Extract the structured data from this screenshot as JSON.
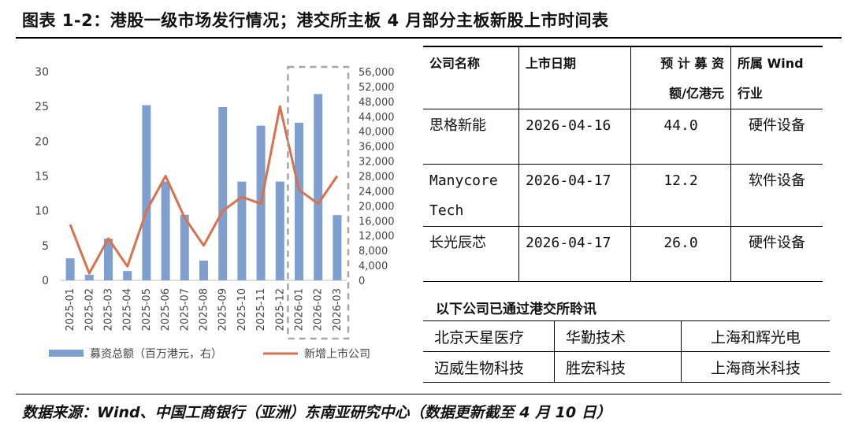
{
  "figure": {
    "title": "图表 1-2：港股一级市场发行情况；港交所主板 4 月部分主板新股上市时间表",
    "source": "数据来源：Wind、中国工商银行（亚洲）东南亚研究中心（数据更新截至 4 月 10 日）"
  },
  "chart_data": {
    "type": "bar",
    "categories": [
      "2025-01",
      "2025-02",
      "2025-03",
      "2025-04",
      "2025-05",
      "2025-06",
      "2025-07",
      "2025-08",
      "2025-09",
      "2025-10",
      "2025-11",
      "2025-12",
      "2026-01",
      "2026-02",
      "2026-03"
    ],
    "series": [
      {
        "name": "募资总额（百万港元，右）",
        "type": "bar",
        "axis": "right",
        "color": "#7f9fcf",
        "values": [
          5900,
          1500,
          11200,
          2500,
          47000,
          26500,
          17600,
          5300,
          46500,
          26500,
          41500,
          26500,
          42300,
          50000,
          17500
        ]
      },
      {
        "name": "新增上市公司",
        "type": "line",
        "axis": "left",
        "color": "#d9714c",
        "values": [
          8,
          1,
          6,
          2,
          10,
          15,
          9,
          5,
          10,
          12,
          11,
          25,
          13,
          11,
          15
        ]
      }
    ],
    "y_left": {
      "min": 0,
      "max": 30,
      "step": 5,
      "ticks": [
        "0",
        "5",
        "10",
        "15",
        "20",
        "25",
        "30"
      ]
    },
    "y_right": {
      "min": 0,
      "max": 56000,
      "step": 4000,
      "ticks": [
        "0",
        "4,000",
        "8,000",
        "12,000",
        "16,000",
        "20,000",
        "24,000",
        "28,000",
        "32,000",
        "36,000",
        "40,000",
        "44,000",
        "48,000",
        "52,000",
        "56,000"
      ]
    },
    "highlight_categories": [
      "2026-01",
      "2026-02",
      "2026-03"
    ],
    "legend_position": "bottom",
    "grid": false
  },
  "ipo_table": {
    "headers": [
      "公司名称",
      "上市日期",
      "预 计 募 资\n额/亿港元",
      "所属 Wind\n行业"
    ],
    "rows": [
      {
        "name": "思格新能",
        "date": "2026-04-16",
        "amount": "44.0",
        "industry": "硬件设备"
      },
      {
        "name": "Manycore\nTech",
        "date": "2026-04-17",
        "amount": "12.2",
        "industry": "软件设备"
      },
      {
        "name": "长光辰芯",
        "date": "2026-04-17",
        "amount": "26.0",
        "industry": "硬件设备"
      }
    ]
  },
  "approved": {
    "title": "以下公司已通过港交所聆讯",
    "rows": [
      [
        "北京天星医疗",
        "华勤技术",
        "上海和辉光电"
      ],
      [
        "迈威生物科技",
        "胜宏科技",
        "上海商米科技"
      ]
    ]
  }
}
